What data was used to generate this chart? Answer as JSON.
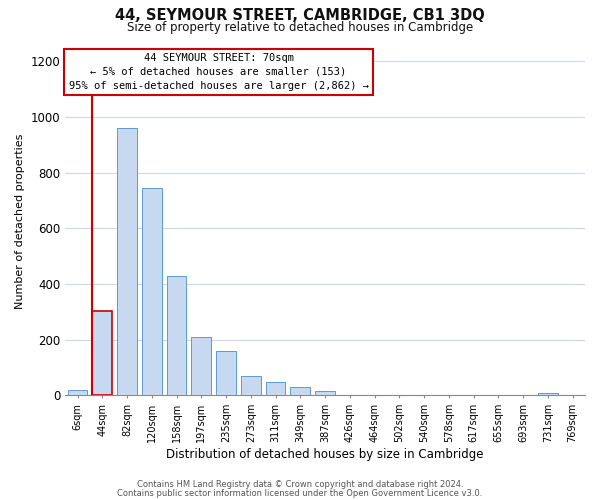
{
  "title": "44, SEYMOUR STREET, CAMBRIDGE, CB1 3DQ",
  "subtitle": "Size of property relative to detached houses in Cambridge",
  "xlabel": "Distribution of detached houses by size in Cambridge",
  "ylabel": "Number of detached properties",
  "bar_labels": [
    "6sqm",
    "44sqm",
    "82sqm",
    "120sqm",
    "158sqm",
    "197sqm",
    "235sqm",
    "273sqm",
    "311sqm",
    "349sqm",
    "387sqm",
    "426sqm",
    "464sqm",
    "502sqm",
    "540sqm",
    "578sqm",
    "617sqm",
    "655sqm",
    "693sqm",
    "731sqm",
    "769sqm"
  ],
  "bar_heights": [
    20,
    305,
    960,
    745,
    430,
    210,
    160,
    70,
    47,
    32,
    15,
    0,
    0,
    0,
    0,
    0,
    0,
    0,
    0,
    8,
    0
  ],
  "bar_color": "#c6d9f0",
  "bar_edge_color": "#5b9bd5",
  "highlight_bar_index": 1,
  "highlight_color": "#cc0000",
  "ylim": [
    0,
    1250
  ],
  "yticks": [
    0,
    200,
    400,
    600,
    800,
    1000,
    1200
  ],
  "annotation_title": "44 SEYMOUR STREET: 70sqm",
  "annotation_line1": "← 5% of detached houses are smaller (153)",
  "annotation_line2": "95% of semi-detached houses are larger (2,862) →",
  "footer_line1": "Contains HM Land Registry data © Crown copyright and database right 2024.",
  "footer_line2": "Contains public sector information licensed under the Open Government Licence v3.0.",
  "background_color": "#ffffff",
  "grid_color": "#d0d8e8"
}
